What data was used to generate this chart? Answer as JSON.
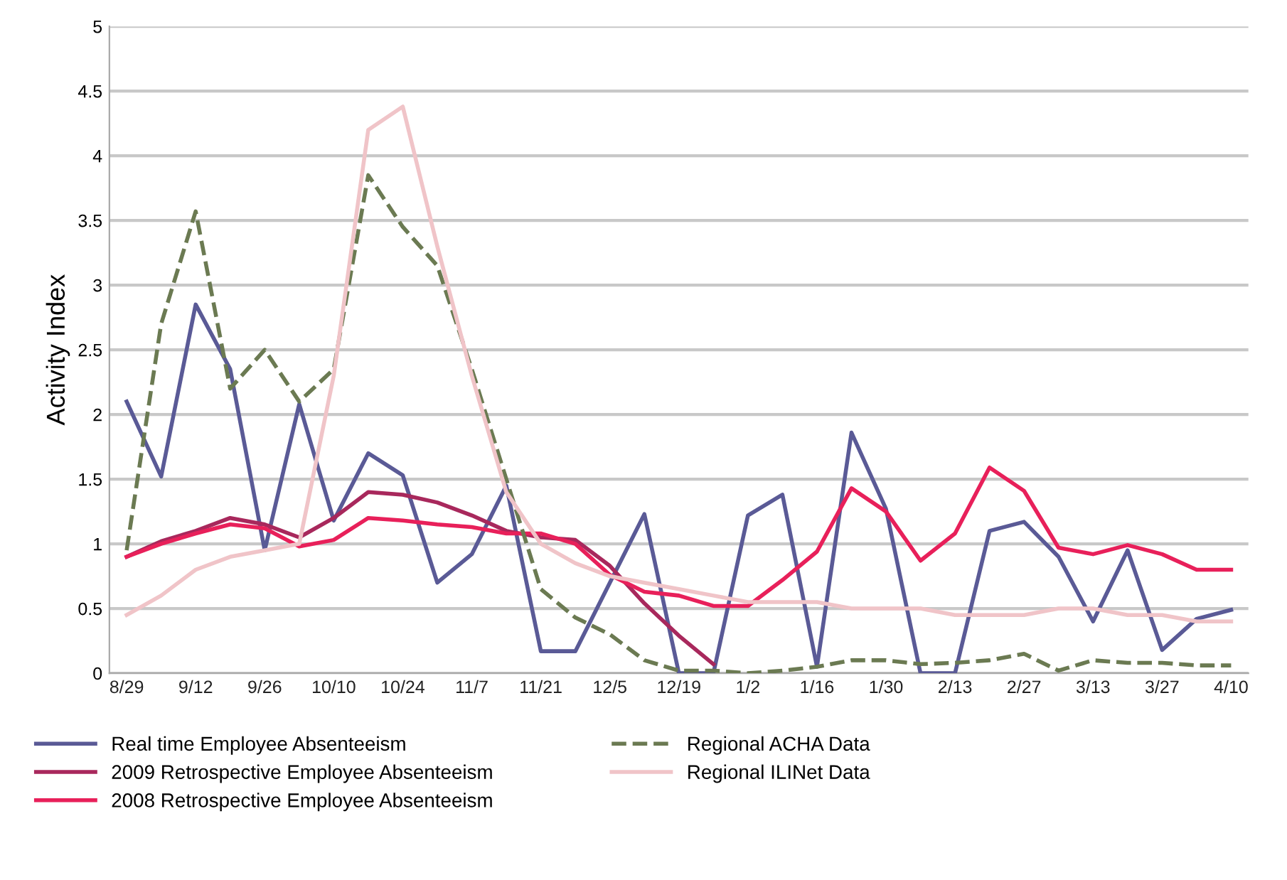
{
  "chart_data": {
    "type": "line",
    "ylabel": "Activity Index",
    "categories": [
      "8/29",
      null,
      "9/12",
      null,
      "9/26",
      null,
      "10/10",
      null,
      "10/24",
      null,
      "11/7",
      null,
      "11/21",
      null,
      "12/5",
      null,
      "12/19",
      null,
      "1/2",
      null,
      "1/16",
      null,
      "1/30",
      null,
      "2/13",
      null,
      "2/27",
      null,
      "3/13",
      null,
      "3/27",
      null,
      "4/10"
    ],
    "series": [
      {
        "name": "Real time Employee Absenteeism",
        "color": "#5a5a96",
        "line_style": "solid",
        "values": [
          2.1,
          1.52,
          2.85,
          2.35,
          0.95,
          2.08,
          1.18,
          1.7,
          1.53,
          0.7,
          0.92,
          1.45,
          0.17,
          0.17,
          0.7,
          1.23,
          0,
          0,
          1.22,
          1.38,
          0.05,
          1.86,
          1.27,
          0,
          0,
          1.1,
          1.17,
          0.9,
          0.4,
          0.95,
          0.18,
          0.42,
          0.49
        ]
      },
      {
        "name": "2009 Retrospective Employee Absenteeism",
        "color": "#a8285c",
        "line_style": "solid",
        "values": [
          0.9,
          1.02,
          1.1,
          1.2,
          1.15,
          1.05,
          1.2,
          1.4,
          1.38,
          1.32,
          1.22,
          1.1,
          1.05,
          1.03,
          0.83,
          0.54,
          0.29,
          0.07,
          null,
          null,
          null,
          null,
          null,
          null,
          null,
          null,
          null,
          null,
          null,
          null,
          null,
          null,
          null
        ]
      },
      {
        "name": "2008 Retrospective Employee Absenteeism",
        "color": "#e8205a",
        "line_style": "solid",
        "values": [
          0.9,
          1.0,
          1.08,
          1.15,
          1.12,
          0.98,
          1.03,
          1.2,
          1.18,
          1.15,
          1.13,
          1.08,
          1.08,
          1.0,
          0.76,
          0.63,
          0.6,
          0.52,
          0.52,
          0.72,
          0.94,
          1.43,
          1.25,
          0.87,
          1.08,
          1.59,
          1.41,
          0.97,
          0.92,
          0.99,
          0.92,
          0.8,
          0.8
        ]
      },
      {
        "name": "Regional ACHA Data",
        "color": "#6b7a52",
        "line_style": "dashed",
        "values": [
          0.95,
          2.7,
          3.57,
          2.2,
          2.5,
          2.1,
          2.35,
          3.85,
          3.45,
          3.15,
          2.35,
          1.5,
          0.65,
          0.43,
          0.3,
          0.1,
          0.02,
          0.02,
          0,
          0.02,
          0.05,
          0.1,
          0.1,
          0.07,
          0.08,
          0.1,
          0.15,
          0.02,
          0.1,
          0.08,
          0.08,
          0.06,
          0.06
        ]
      },
      {
        "name": "Regional ILINet Data",
        "color": "#f0c4c8",
        "line_style": "solid",
        "values": [
          0.45,
          0.6,
          0.8,
          0.9,
          0.95,
          1.0,
          2.3,
          4.2,
          4.38,
          3.3,
          2.3,
          1.4,
          1.0,
          0.85,
          0.75,
          0.7,
          0.65,
          0.6,
          0.55,
          0.55,
          0.55,
          0.5,
          0.5,
          0.5,
          0.45,
          0.45,
          0.45,
          0.5,
          0.5,
          0.45,
          0.45,
          0.4,
          0.4
        ]
      }
    ],
    "ylim": [
      0,
      5
    ],
    "yticks": [
      0,
      0.5,
      1,
      1.5,
      2,
      2.5,
      3,
      3.5,
      4,
      4.5,
      5
    ],
    "grid": "y",
    "legend": "bottom",
    "marker": "none"
  }
}
